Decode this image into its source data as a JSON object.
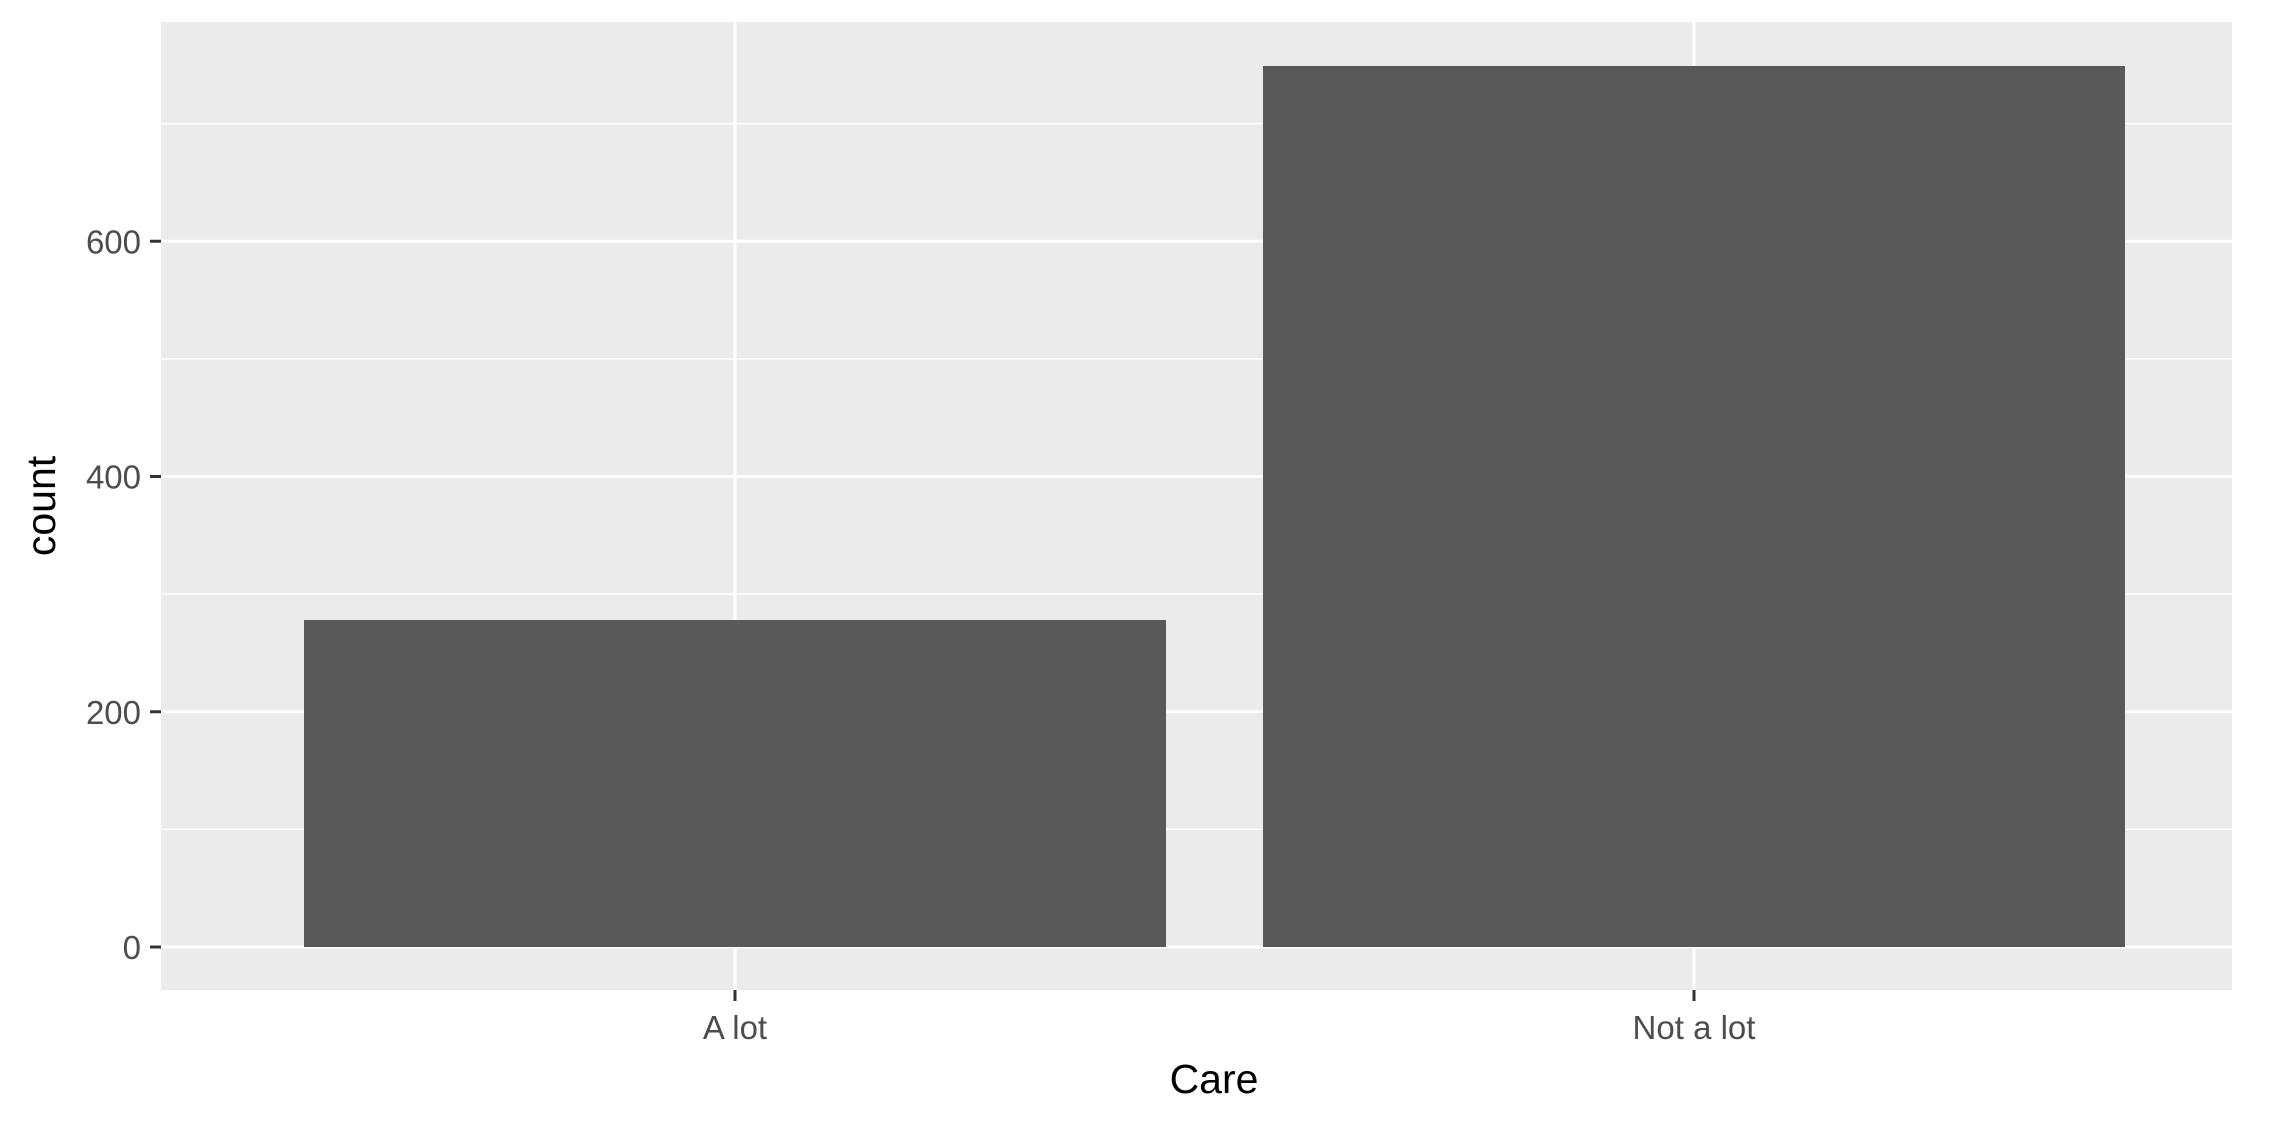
{
  "chart_data": {
    "type": "bar",
    "categories": [
      "A lot",
      "Not a lot"
    ],
    "values": [
      278,
      749
    ],
    "xlabel": "Care",
    "ylabel": "count",
    "ylim": [
      0,
      749
    ],
    "yticks": [
      0,
      200,
      400,
      600
    ],
    "grid": true,
    "colors": {
      "panel_background": "#ebebeb",
      "grid_major": "#ffffff",
      "bar_fill": "#595959",
      "tick_text": "#4d4d4d",
      "axis_title": "#000000"
    }
  }
}
